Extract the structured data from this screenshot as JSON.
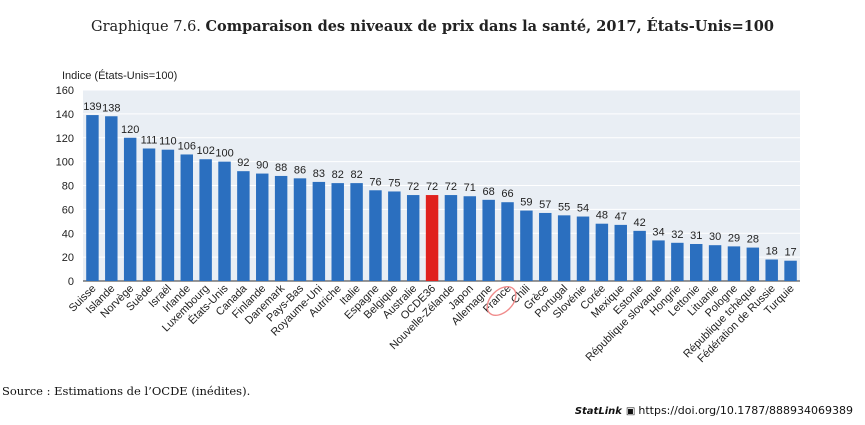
{
  "title_prefix": "Graphique 7.6.",
  "title_main": "Comparaison des niveaux de prix dans la santé, 2017, États-Unis=100",
  "source": "Source : Estimations de l’OCDE (inédites).",
  "statlink": {
    "brand": "StatLink",
    "logo_glyph": "▣",
    "url": "https://doi.org/10.1787/888934069389"
  },
  "colors": {
    "bar": "#2b6fbf",
    "highlight": "#e0211d",
    "plot_bg": "#e9eef4",
    "grid": "#ffffff"
  },
  "chart_data": {
    "type": "bar",
    "ylabel": "Indice (États-Unis=100)",
    "ylim": [
      0,
      160
    ],
    "yticks": [
      0,
      20,
      40,
      60,
      80,
      100,
      120,
      140,
      160
    ],
    "grid": true,
    "highlight": "OCDE36",
    "categories": [
      "Suisse",
      "Islande",
      "Norvège",
      "Suède",
      "Israël",
      "Irlande",
      "Luxembourg",
      "États-Unis",
      "Canada",
      "Finlande",
      "Danemark",
      "Pays-Bas",
      "Royaume-Uni",
      "Autriche",
      "Italie",
      "Espagne",
      "Belgique",
      "Australie",
      "OCDE36",
      "Nouvelle-Zélande",
      "Japon",
      "Allemagne",
      "France",
      "Chili",
      "Grèce",
      "Portugal",
      "Slovénie",
      "Corée",
      "Mexique",
      "Estonie",
      "République slovaque",
      "Hongrie",
      "Lettonie",
      "Lituanie",
      "Pologne",
      "République tchèque",
      "Fédération de Russie",
      "Turquie"
    ],
    "values": [
      139,
      138,
      120,
      111,
      110,
      106,
      102,
      100,
      92,
      90,
      88,
      86,
      83,
      82,
      82,
      76,
      75,
      72,
      72,
      72,
      71,
      68,
      66,
      59,
      57,
      55,
      54,
      48,
      47,
      42,
      34,
      32,
      31,
      30,
      29,
      28,
      18,
      17
    ]
  }
}
